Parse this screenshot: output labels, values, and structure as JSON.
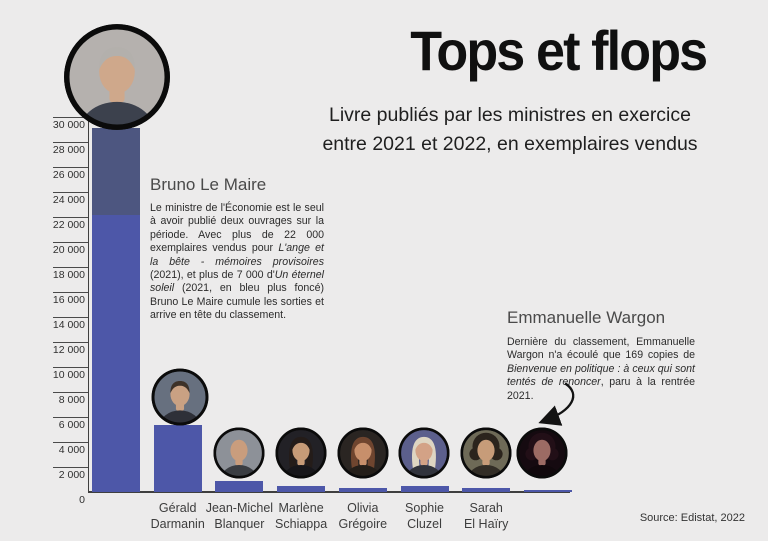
{
  "header": {
    "title": "Tops et flops",
    "subtitle_lines": [
      "Livre publiés par les ministres en exercice",
      "entre 2021 et 2022, en exemplaires vendus"
    ]
  },
  "annotations": {
    "lemaire": {
      "heading": "Bruno Le Maire",
      "paragraph": [
        {
          "text": "Le ministre de l'Économie est le seul à avoir publié deux ouvrages sur la période. Avec plus de 22 000 exemplaires vendus pour ",
          "italic": false
        },
        {
          "text": "L'ange et la bête - mémoires provisoires",
          "italic": true
        },
        {
          "text": " (2021), et plus de 7 000 d'",
          "italic": false
        },
        {
          "text": "Un éternel soleil",
          "italic": true
        },
        {
          "text": " (2021, en bleu plus foncé) Bruno Le Maire cumule les sorties et arrive en tête du classement.",
          "italic": false
        }
      ]
    },
    "wargon": {
      "heading": "Emmanuelle Wargon",
      "paragraph": [
        {
          "text": "Dernière du classement, Emmanuelle Wargon n'a écoulé que 169 copies de ",
          "italic": false
        },
        {
          "text": "Bienvenue en politique : à ceux qui sont tentés de renoncer",
          "italic": true
        },
        {
          "text": ", paru à la rentrée 2021.",
          "italic": false
        }
      ]
    }
  },
  "source": "Source: Edistat, 2022",
  "chart_data": {
    "type": "bar",
    "title": "Tops et flops",
    "subtitle": "Livre publiés par les ministres en exercice entre 2021 et 2022, en exemplaires vendus",
    "ylabel": "exemplaires vendus",
    "ylim": [
      0,
      30000
    ],
    "ytick_step": 2000,
    "ytick_labels_ascending": [
      "2 000",
      "4 000",
      "6 000",
      "8 000",
      "10 000",
      "12 000",
      "14 000",
      "16 000",
      "18 000",
      "20 000",
      "22 000",
      "24 000",
      "26 000",
      "28 000",
      "30 000"
    ],
    "ytick_zero": "0",
    "grid": false,
    "legend": "none",
    "bar_color": "#4D57A8",
    "bar_color_dark": "#4D5680",
    "bars": [
      {
        "id": "bruno-le-maire",
        "name": "Bruno Le Maire",
        "label_lines": [],
        "value": 29100,
        "segments": [
          {
            "name": "L'ange et la bête - mémoires provisoires (2021)",
            "value": 22200,
            "color": "#4D57A8"
          },
          {
            "name": "Un éternel soleil (2021)",
            "value": 6900,
            "color": "#4D5680"
          }
        ],
        "avatar": {
          "style": "short",
          "bg": "#b5b1ae",
          "skin": "#cfa88b",
          "hair": "#b3b0ac",
          "clothes": "#3c414d"
        }
      },
      {
        "id": "gerald-darmanin",
        "name": "Gérald Darmanin",
        "label_lines": [
          "Gérald",
          "Darmanin"
        ],
        "value": 5400,
        "avatar": {
          "style": "short",
          "bg": "#67707f",
          "skin": "#c9a183",
          "hair": "#3d3128",
          "clothes": "#2e3038"
        }
      },
      {
        "id": "jean-michel-blanquer",
        "name": "Jean-Michel Blanquer",
        "label_lines": [
          "Jean-Michel",
          "Blanquer"
        ],
        "value": 850,
        "avatar": {
          "style": "bald",
          "bg": "#8d9198",
          "skin": "#c99d7d",
          "hair": "#c99d7d",
          "clothes": "#3a3d42"
        }
      },
      {
        "id": "marlene-schiappa",
        "name": "Marlène Schiappa",
        "label_lines": [
          "Marlène",
          "Schiappa"
        ],
        "value": 450,
        "avatar": {
          "style": "long",
          "bg": "#222126",
          "skin": "#c79b77",
          "hair": "#241c19",
          "clothes": "#17161a"
        }
      },
      {
        "id": "olivia-gregoire",
        "name": "Olivia Grégoire",
        "label_lines": [
          "Olivia",
          "Grégoire"
        ],
        "value": 350,
        "avatar": {
          "style": "long",
          "bg": "#2a2522",
          "skin": "#c78f6b",
          "hair": "#6f452f",
          "clothes": "#241e19"
        }
      },
      {
        "id": "sophie-cluzel",
        "name": "Sophie Cluzel",
        "label_lines": [
          "Sophie",
          "Cluzel"
        ],
        "value": 450,
        "avatar": {
          "style": "long",
          "bg": "#5c5f8c",
          "skin": "#d3a286",
          "hair": "#ded5c2",
          "clothes": "#31333c"
        }
      },
      {
        "id": "sarah-el-hairy",
        "name": "Sarah El Haïry",
        "label_lines": [
          "Sarah",
          "El Haïry"
        ],
        "value": 300,
        "avatar": {
          "style": "curly",
          "bg": "#6e6a57",
          "skin": "#c79c79",
          "hair": "#2b241d",
          "clothes": "#322d26"
        }
      },
      {
        "id": "emmanuelle-wargon",
        "name": "Emmanuelle Wargon",
        "label_lines": [],
        "value": 169,
        "avatar": {
          "style": "curly",
          "bg": "#150a10",
          "skin": "#9c6b64",
          "hair": "#220f17",
          "clothes": "#10080c"
        }
      }
    ]
  }
}
